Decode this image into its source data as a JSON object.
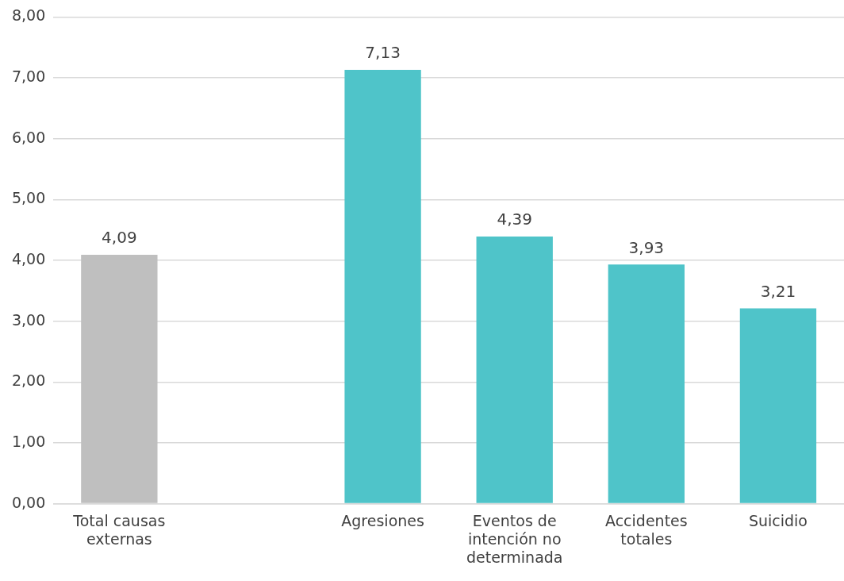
{
  "chart_data": {
    "type": "bar",
    "categories": [
      "Total causas externas",
      null,
      "Agresiones",
      "Eventos de intención no determinada",
      "Accidentes totales",
      "Suicidio"
    ],
    "values": [
      4.09,
      null,
      7.13,
      4.39,
      3.93,
      3.21
    ],
    "colors": [
      "#bfbfbf",
      "#4fc4c9",
      "#4fc4c9",
      "#4fc4c9",
      "#4fc4c9",
      "#4fc4c9"
    ],
    "value_labels": [
      "4,09",
      null,
      "7,13",
      "4,39",
      "3,93",
      "3,21"
    ],
    "ylim": [
      0,
      8
    ],
    "yticks": [
      {
        "value": 0,
        "label": "0,00"
      },
      {
        "value": 1,
        "label": "1,00"
      },
      {
        "value": 2,
        "label": "2,00"
      },
      {
        "value": 3,
        "label": "3,00"
      },
      {
        "value": 4,
        "label": "4,00"
      },
      {
        "value": 5,
        "label": "5,00"
      },
      {
        "value": 6,
        "label": "6,00"
      },
      {
        "value": 7,
        "label": "7,00"
      },
      {
        "value": 8,
        "label": "8,00"
      }
    ],
    "grid": "y",
    "legend": false
  }
}
